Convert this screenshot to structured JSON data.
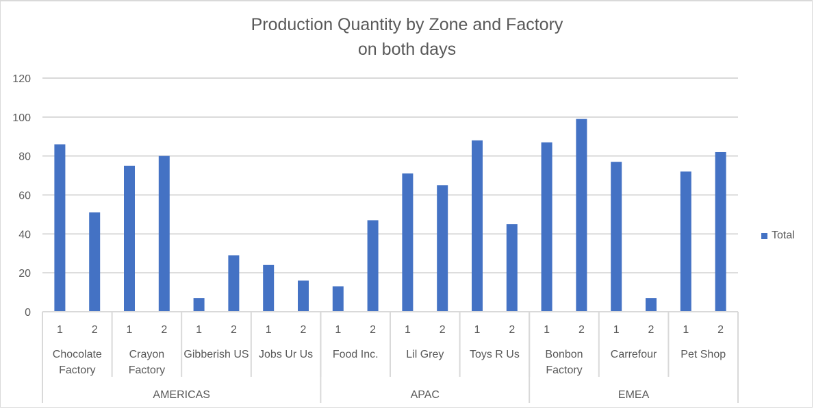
{
  "chart_data": {
    "type": "bar",
    "title": "Production Quantity by Zone and Factory",
    "subtitle": "on both days",
    "xlabel": "",
    "ylabel": "",
    "ylim": [
      0,
      120
    ],
    "yticks": [
      "0",
      "20",
      "40",
      "60",
      "80",
      "100",
      "120"
    ],
    "grid": true,
    "legend_position": "right",
    "bar_color": "#4472c4",
    "zones": [
      {
        "name": "AMERICAS",
        "factories": [
          {
            "label_lines": [
              "Chocolate",
              "Factory"
            ],
            "days": [
              "1",
              "2"
            ],
            "values": [
              86,
              51
            ]
          },
          {
            "label_lines": [
              "Crayon",
              "Factory"
            ],
            "days": [
              "1",
              "2"
            ],
            "values": [
              75,
              80
            ]
          },
          {
            "label_lines": [
              "Gibberish US"
            ],
            "days": [
              "1",
              "2"
            ],
            "values": [
              7,
              29
            ]
          },
          {
            "label_lines": [
              "Jobs Ur Us"
            ],
            "days": [
              "1",
              "2"
            ],
            "values": [
              24,
              16
            ]
          }
        ]
      },
      {
        "name": "APAC",
        "factories": [
          {
            "label_lines": [
              "Food Inc."
            ],
            "days": [
              "1",
              "2"
            ],
            "values": [
              13,
              47
            ]
          },
          {
            "label_lines": [
              "Lil Grey"
            ],
            "days": [
              "1",
              "2"
            ],
            "values": [
              71,
              65
            ]
          },
          {
            "label_lines": [
              "Toys R Us"
            ],
            "days": [
              "1",
              "2"
            ],
            "values": [
              88,
              45
            ]
          }
        ]
      },
      {
        "name": "EMEA",
        "factories": [
          {
            "label_lines": [
              "Bonbon",
              "Factory"
            ],
            "days": [
              "1",
              "2"
            ],
            "values": [
              87,
              99
            ]
          },
          {
            "label_lines": [
              "Carrefour"
            ],
            "days": [
              "1",
              "2"
            ],
            "values": [
              77,
              7
            ]
          },
          {
            "label_lines": [
              "Pet Shop"
            ],
            "days": [
              "1",
              "2"
            ],
            "values": [
              72,
              82
            ]
          }
        ]
      }
    ],
    "series": [
      {
        "name": "Total"
      }
    ]
  }
}
